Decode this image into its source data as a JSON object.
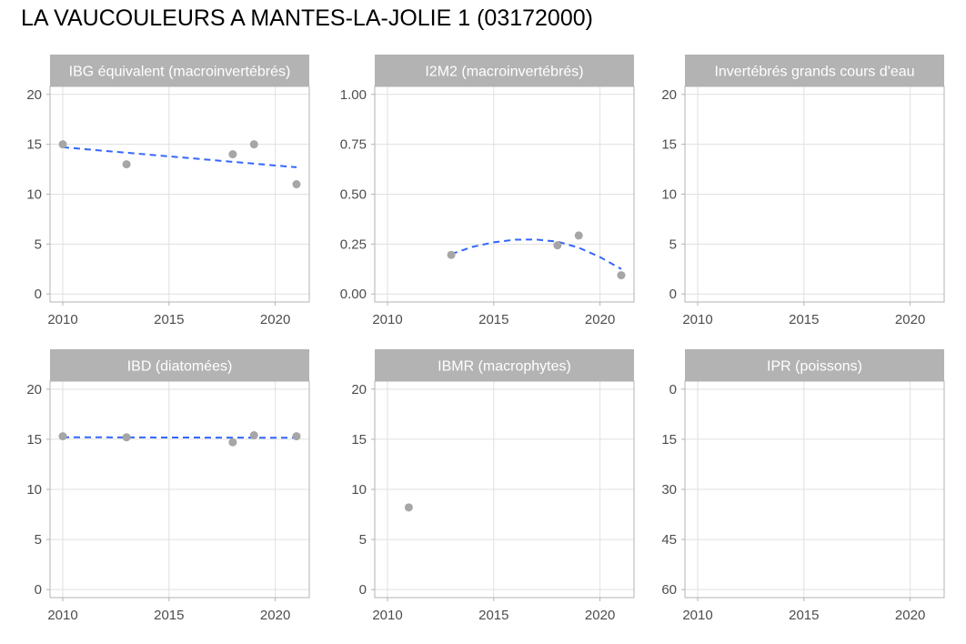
{
  "title": "LA VAUCOULEURS A MANTES-LA-JOLIE 1 (03172000)",
  "colors": {
    "strip": "#b3b3b3",
    "grid": "#e0e0e0",
    "border": "#b3b3b3",
    "point": "#a6a6a6",
    "trend": "#3366ff",
    "tick_text": "#4d4d4d"
  },
  "chart_data": [
    {
      "type": "scatter",
      "title": "IBG équivalent (macroinvertébrés)",
      "xlim": [
        2009.4,
        2021.6
      ],
      "ylim": [
        -0.8,
        20.8
      ],
      "y_reversed": false,
      "x_ticks": [
        2010,
        2015,
        2020
      ],
      "y_ticks": [
        0,
        5,
        10,
        15,
        20
      ],
      "y_tick_labels": [
        "0",
        "5",
        "10",
        "15",
        "20"
      ],
      "grid": true,
      "points": {
        "x": [
          2010,
          2013,
          2018,
          2019,
          2021
        ],
        "y": [
          15,
          13,
          14,
          15,
          11
        ]
      },
      "trend": {
        "style": "dashed",
        "x": [
          2010,
          2021
        ],
        "y": [
          14.7,
          12.7
        ]
      }
    },
    {
      "type": "scatter",
      "title": "I2M2 (macroinvertébrés)",
      "xlim": [
        2009.4,
        2021.6
      ],
      "ylim": [
        -0.04,
        1.04
      ],
      "y_reversed": false,
      "x_ticks": [
        2010,
        2015,
        2020
      ],
      "y_ticks": [
        0,
        0.25,
        0.5,
        0.75,
        1
      ],
      "y_tick_labels": [
        "0.00",
        "0.25",
        "0.50",
        "0.75",
        "1.00"
      ],
      "grid": true,
      "points": {
        "x": [
          2013,
          2018,
          2019,
          2021
        ],
        "y": [
          0.196,
          0.244,
          0.293,
          0.094
        ]
      },
      "trend": {
        "style": "dashed",
        "x": [
          2013,
          2014,
          2015,
          2016,
          2017,
          2018,
          2019,
          2020,
          2021
        ],
        "y": [
          0.2,
          0.236,
          0.259,
          0.272,
          0.273,
          0.262,
          0.232,
          0.185,
          0.125
        ]
      }
    },
    {
      "type": "scatter",
      "title": "Invertébrés grands cours d'eau",
      "xlim": [
        2009.4,
        2021.6
      ],
      "ylim": [
        -0.8,
        20.8
      ],
      "y_reversed": false,
      "x_ticks": [
        2010,
        2015,
        2020
      ],
      "y_ticks": [
        0,
        5,
        10,
        15,
        20
      ],
      "y_tick_labels": [
        "0",
        "5",
        "10",
        "15",
        "20"
      ],
      "grid": true,
      "points": {
        "x": [],
        "y": []
      },
      "trend": null
    },
    {
      "type": "scatter",
      "title": "IBD (diatomées)",
      "xlim": [
        2009.4,
        2021.6
      ],
      "ylim": [
        -0.8,
        20.8
      ],
      "y_reversed": false,
      "x_ticks": [
        2010,
        2015,
        2020
      ],
      "y_ticks": [
        0,
        5,
        10,
        15,
        20
      ],
      "y_tick_labels": [
        "0",
        "5",
        "10",
        "15",
        "20"
      ],
      "grid": true,
      "points": {
        "x": [
          2010,
          2013,
          2018,
          2019,
          2021
        ],
        "y": [
          15.3,
          15.2,
          14.7,
          15.4,
          15.3
        ]
      },
      "trend": {
        "style": "dashed",
        "x": [
          2010,
          2021
        ],
        "y": [
          15.2,
          15.15
        ]
      }
    },
    {
      "type": "scatter",
      "title": "IBMR (macrophytes)",
      "xlim": [
        2009.4,
        2021.6
      ],
      "ylim": [
        -0.8,
        20.8
      ],
      "y_reversed": false,
      "x_ticks": [
        2010,
        2015,
        2020
      ],
      "y_ticks": [
        0,
        5,
        10,
        15,
        20
      ],
      "y_tick_labels": [
        "0",
        "5",
        "10",
        "15",
        "20"
      ],
      "grid": true,
      "points": {
        "x": [
          2011
        ],
        "y": [
          8.2
        ]
      },
      "trend": null
    },
    {
      "type": "scatter",
      "title": "IPR (poissons)",
      "xlim": [
        2009.4,
        2021.6
      ],
      "ylim": [
        -2.4,
        62.4
      ],
      "y_reversed": true,
      "x_ticks": [
        2010,
        2015,
        2020
      ],
      "y_ticks": [
        0,
        15,
        30,
        45,
        60
      ],
      "y_tick_labels": [
        "0",
        "15",
        "30",
        "45",
        "60"
      ],
      "grid": true,
      "points": {
        "x": [],
        "y": []
      },
      "trend": null
    }
  ]
}
